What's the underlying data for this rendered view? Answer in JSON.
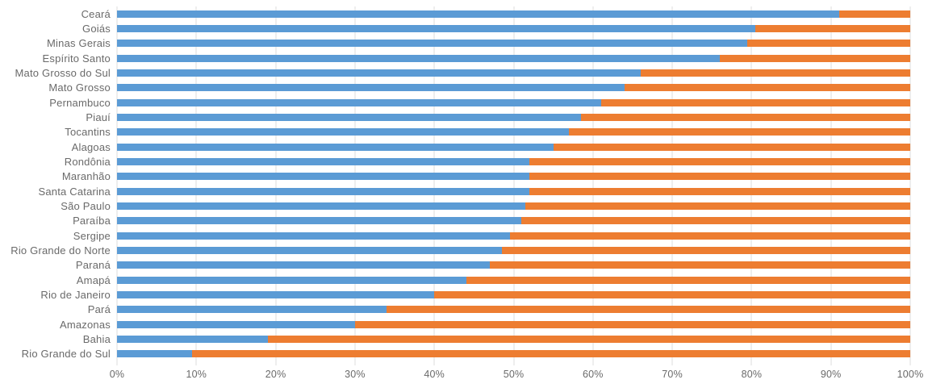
{
  "chart_data": {
    "type": "bar",
    "orientation": "horizontal",
    "stacked": true,
    "percent_stacked": true,
    "title": "",
    "xlabel": "",
    "ylabel": "",
    "xlim": [
      0,
      100
    ],
    "grid": "vertical",
    "legend": "none",
    "colors": {
      "primary": "#5B9BD5",
      "secondary": "#ED7D31",
      "gridline": "#DEDEDE",
      "text": "#6a6a6a"
    },
    "categories": [
      "Ceará",
      "Goiás",
      "Minas Gerais",
      "Espírito Santo",
      "Mato Grosso do Sul",
      "Mato Grosso",
      "Pernambuco",
      "Piauí",
      "Tocantins",
      "Alagoas",
      "Rondônia",
      "Maranhão",
      "Santa Catarina",
      "São Paulo",
      "Paraíba",
      "Sergipe",
      "Rio Grande do Norte",
      "Paraná",
      "Amapá",
      "Rio de Janeiro",
      "Pará",
      "Amazonas",
      "Bahia",
      "Rio Grande do Sul"
    ],
    "series": [
      {
        "name": "series-blue",
        "color": "#5B9BD5",
        "values": [
          91,
          80.5,
          79.5,
          76,
          66,
          64,
          61,
          58.5,
          57,
          55,
          52,
          52,
          52,
          51.5,
          51,
          49.5,
          48.5,
          47,
          44,
          40,
          34,
          30,
          19,
          9.5
        ]
      },
      {
        "name": "series-orange",
        "color": "#ED7D31",
        "values": [
          9,
          19.5,
          20.5,
          24,
          34,
          36,
          39,
          41.5,
          43,
          45,
          48,
          48,
          48,
          48.5,
          49,
          50.5,
          51.5,
          53,
          56,
          60,
          66,
          70,
          81,
          90.5
        ]
      }
    ],
    "x_ticks": [
      "0%",
      "10%",
      "20%",
      "30%",
      "40%",
      "50%",
      "60%",
      "70%",
      "80%",
      "90%",
      "100%"
    ]
  }
}
